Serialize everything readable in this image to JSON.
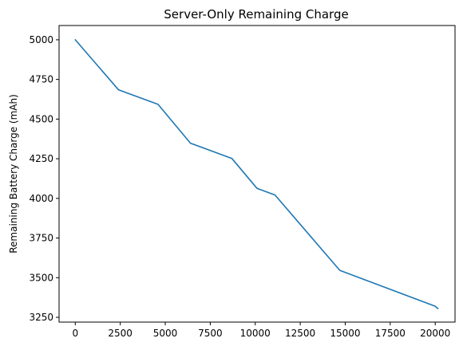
{
  "chart_data": {
    "type": "line",
    "title": "Server-Only Remaining Charge",
    "xlabel": "",
    "ylabel": "Remaining Battery Charge (mAh)",
    "xlim": [
      -900,
      21100
    ],
    "ylim": [
      3220,
      5090
    ],
    "xticks": [
      0,
      2500,
      5000,
      7500,
      10000,
      12500,
      15000,
      17500,
      20000
    ],
    "xtick_labels": [
      "0",
      "2500",
      "5000",
      "7500",
      "10000",
      "12500",
      "15000",
      "17500",
      "20000"
    ],
    "yticks": [
      3250,
      3500,
      3750,
      4000,
      4250,
      4500,
      4750,
      5000
    ],
    "ytick_labels": [
      "3250",
      "3500",
      "3750",
      "4000",
      "4250",
      "4500",
      "4750",
      "5000"
    ],
    "grid": false,
    "legend": false,
    "line_color": "#1f77b4",
    "series": [
      {
        "x": [
          0,
          2400,
          4600,
          6400,
          8700,
          10100,
          11100,
          14700,
          20000,
          20150
        ],
        "y": [
          5000,
          4685,
          4593,
          4348,
          4252,
          4063,
          4021,
          3546,
          3320,
          3305
        ]
      }
    ]
  }
}
